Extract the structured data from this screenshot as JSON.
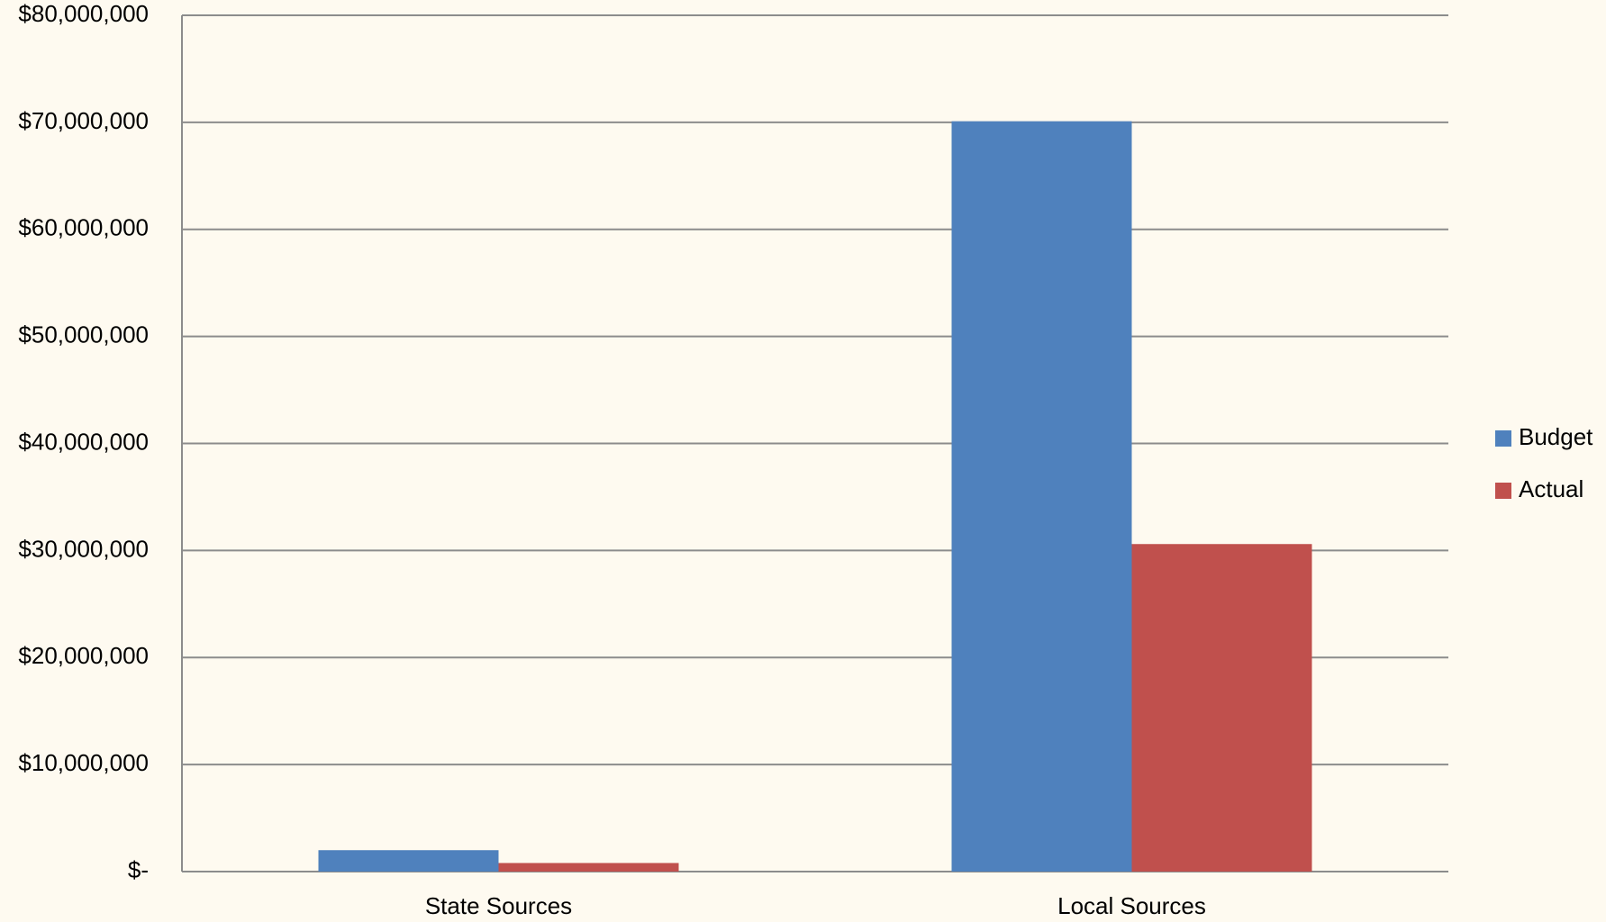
{
  "chart_data": {
    "type": "bar",
    "categories": [
      "State Sources",
      "Local Sources"
    ],
    "series": [
      {
        "name": "Budget",
        "color": "#4f81bd",
        "values": [
          2000000,
          70100000
        ]
      },
      {
        "name": "Actual",
        "color": "#c0504d",
        "values": [
          800000,
          30600000
        ]
      }
    ],
    "ylim": [
      0,
      80000000
    ],
    "yticks": [
      {
        "value": 0,
        "label": "$-"
      },
      {
        "value": 10000000,
        "label": "$10,000,000"
      },
      {
        "value": 20000000,
        "label": "$20,000,000"
      },
      {
        "value": 30000000,
        "label": "$30,000,000"
      },
      {
        "value": 40000000,
        "label": "$40,000,000"
      },
      {
        "value": 50000000,
        "label": "$50,000,000"
      },
      {
        "value": 60000000,
        "label": "$60,000,000"
      },
      {
        "value": 70000000,
        "label": "$70,000,000"
      },
      {
        "value": 80000000,
        "label": "$80,000,000"
      }
    ],
    "grid": true,
    "legend": "right"
  }
}
